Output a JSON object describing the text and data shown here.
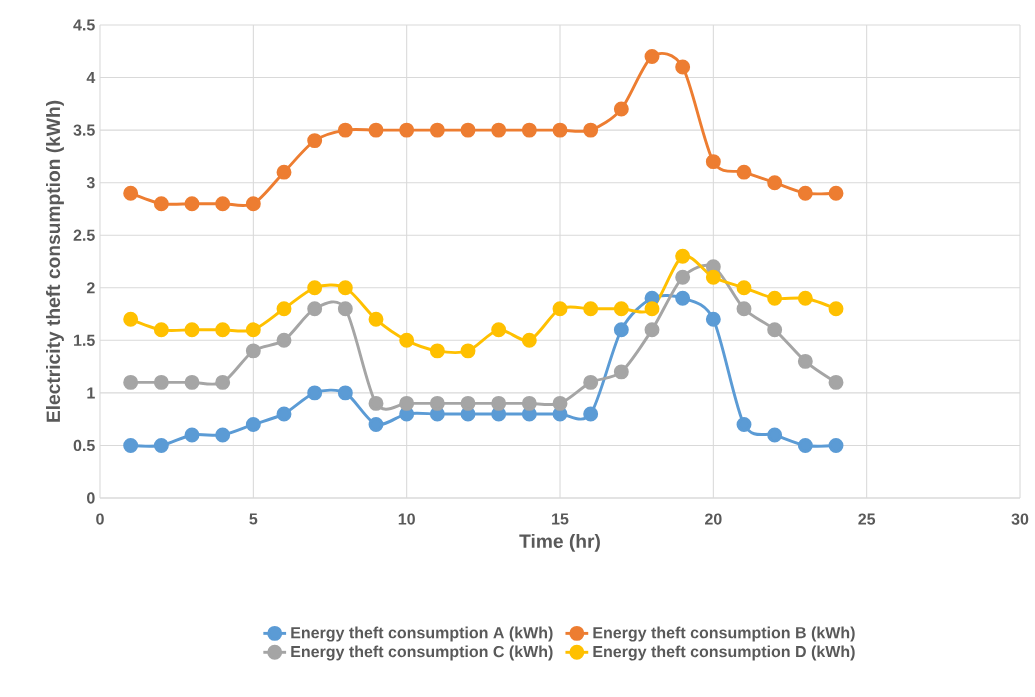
{
  "chart_data": {
    "type": "line",
    "xlabel": "Time (hr)",
    "ylabel": "Electricity theft  consumption (kWh)",
    "x": [
      1,
      2,
      3,
      4,
      5,
      6,
      7,
      8,
      9,
      10,
      11,
      12,
      13,
      14,
      15,
      16,
      17,
      18,
      19,
      20,
      21,
      22,
      23,
      24
    ],
    "xlim": [
      0,
      30
    ],
    "xticks": [
      0,
      5,
      10,
      15,
      20,
      25,
      30
    ],
    "ylim": [
      0,
      4.5
    ],
    "yticks": [
      0,
      0.5,
      1,
      1.5,
      2,
      2.5,
      3,
      3.5,
      4,
      4.5
    ],
    "grid": true,
    "legend": "bottom",
    "marker": "circle",
    "line_style": "solid",
    "series": [
      {
        "name": "Energy theft consumption A (kWh)",
        "color": "#5b9bd5",
        "values": [
          0.5,
          0.5,
          0.6,
          0.6,
          0.7,
          0.8,
          1.0,
          1.0,
          0.7,
          0.8,
          0.8,
          0.8,
          0.8,
          0.8,
          0.8,
          0.8,
          1.6,
          1.9,
          1.9,
          1.7,
          0.7,
          0.6,
          0.5,
          0.5
        ]
      },
      {
        "name": "Energy theft consumption B (kWh)",
        "color": "#ed7d31",
        "values": [
          2.9,
          2.8,
          2.8,
          2.8,
          2.8,
          3.1,
          3.4,
          3.5,
          3.5,
          3.5,
          3.5,
          3.5,
          3.5,
          3.5,
          3.5,
          3.5,
          3.7,
          4.2,
          4.1,
          3.2,
          3.1,
          3.0,
          2.9,
          2.9
        ]
      },
      {
        "name": "Energy theft consumption C (kWh)",
        "color": "#a5a5a5",
        "values": [
          1.1,
          1.1,
          1.1,
          1.1,
          1.4,
          1.5,
          1.8,
          1.8,
          0.9,
          0.9,
          0.9,
          0.9,
          0.9,
          0.9,
          0.9,
          1.1,
          1.2,
          1.6,
          2.1,
          2.2,
          1.8,
          1.6,
          1.3,
          1.1
        ]
      },
      {
        "name": "Energy theft consumption D (kWh)",
        "color": "#ffc000",
        "values": [
          1.7,
          1.6,
          1.6,
          1.6,
          1.6,
          1.8,
          2.0,
          2.0,
          1.7,
          1.5,
          1.4,
          1.4,
          1.6,
          1.5,
          1.8,
          1.8,
          1.8,
          1.8,
          2.3,
          2.1,
          2.0,
          1.9,
          1.9,
          1.8
        ]
      }
    ]
  }
}
